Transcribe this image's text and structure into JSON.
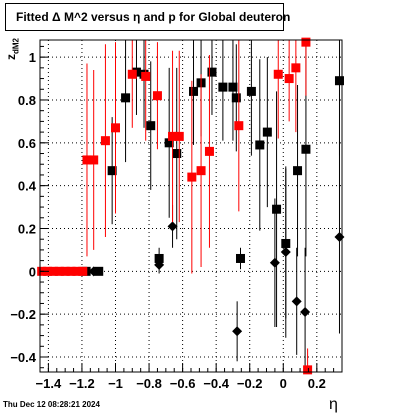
{
  "title": "Fitted Δ M^2 versus η and p for Global deuteron",
  "footer": "Thu Dec 12 08:28:21 2024",
  "chart_data": {
    "type": "scatter",
    "xlabel": "η",
    "ylabel_main": "z",
    "ylabel_sub": "dM2",
    "xlim": [
      -1.45,
      0.35
    ],
    "ylim": [
      -0.47,
      1.08
    ],
    "grid": true,
    "x_ticks": [
      -1.4,
      -1.2,
      -1,
      -0.8,
      -0.6,
      -0.4,
      -0.2,
      0,
      0.2
    ],
    "x_tick_labels": [
      "−1.4",
      "−1.2",
      "−1",
      "−0.8",
      "−0.6",
      "−0.4",
      "−0.2",
      "0",
      "0.2"
    ],
    "y_ticks": [
      -0.4,
      -0.2,
      0,
      0.2,
      0.4,
      0.6,
      0.8,
      1
    ],
    "y_tick_labels": [
      "−0.4",
      "−0.2",
      "0",
      "0.2",
      "0.4",
      "0.6",
      "0.8",
      "1"
    ],
    "series": [
      {
        "color": "#ff0000",
        "marker": "square",
        "points": [
          {
            "x": -1.44,
            "y": 0.0
          },
          {
            "x": -1.405,
            "y": 0.0
          },
          {
            "x": -1.37,
            "y": 0.0
          },
          {
            "x": -1.335,
            "y": 0.0
          },
          {
            "x": -1.3,
            "y": 0.0
          },
          {
            "x": -1.265,
            "y": 0.0
          },
          {
            "x": -1.23,
            "y": 0.0
          },
          {
            "x": -1.195,
            "y": 0.0
          },
          {
            "x": -1.17,
            "y": 0.52,
            "err": 0.45
          },
          {
            "x": -1.13,
            "y": 0.52,
            "err": 0.42
          },
          {
            "x": -1.06,
            "y": 0.61,
            "err": 0.45
          },
          {
            "x": -1.0,
            "y": 0.67,
            "err": 0.4
          },
          {
            "x": -0.9,
            "y": 0.92,
            "err": 0.25
          },
          {
            "x": -0.82,
            "y": 0.91,
            "err": 0.3
          },
          {
            "x": -0.75,
            "y": 0.82,
            "err": 0.25
          },
          {
            "x": -0.66,
            "y": 0.63,
            "err": 0.4
          },
          {
            "x": -0.62,
            "y": 0.63,
            "err": 0.4
          },
          {
            "x": -0.545,
            "y": 0.44,
            "err": 0.45
          },
          {
            "x": -0.49,
            "y": 0.47,
            "err": 0.45
          },
          {
            "x": -0.44,
            "y": 0.56,
            "err": 0.45
          },
          {
            "x": -0.265,
            "y": 0.68,
            "err": 0.4
          },
          {
            "x": -0.03,
            "y": 0.92,
            "err": 0.3
          },
          {
            "x": 0.035,
            "y": 0.9,
            "err": 0.2
          },
          {
            "x": 0.075,
            "y": 0.95,
            "err": 0.3
          },
          {
            "x": 0.135,
            "y": 1.07,
            "err": 0.25
          },
          {
            "x": 0.145,
            "y": -0.46,
            "err": 0.1
          }
        ]
      },
      {
        "color": "#000000",
        "marker": "square",
        "points": [
          {
            "x": -1.175,
            "y": 0.0
          },
          {
            "x": -1.1,
            "y": 0.0
          },
          {
            "x": -1.02,
            "y": 0.47,
            "err": 0.25
          },
          {
            "x": -0.94,
            "y": 0.81,
            "err": 0.3
          },
          {
            "x": -0.875,
            "y": 0.93,
            "err": 0.2
          },
          {
            "x": -0.83,
            "y": 0.92,
            "err": 0.25
          },
          {
            "x": -0.79,
            "y": 0.68,
            "err": 0.3
          },
          {
            "x": -0.74,
            "y": 0.06,
            "err": 0.05
          },
          {
            "x": -0.68,
            "y": 0.6,
            "err": 0.35
          },
          {
            "x": -0.635,
            "y": 0.55,
            "err": 0.4
          },
          {
            "x": -0.535,
            "y": 0.84,
            "err": 0.25
          },
          {
            "x": -0.49,
            "y": 0.88,
            "err": 0.25
          },
          {
            "x": -0.425,
            "y": 0.93,
            "err": 0.2
          },
          {
            "x": -0.36,
            "y": 0.86,
            "err": 0.25
          },
          {
            "x": -0.3,
            "y": 0.86,
            "err": 0.25
          },
          {
            "x": -0.28,
            "y": 0.81,
            "err": 0.25
          },
          {
            "x": -0.255,
            "y": 0.06,
            "err": 0.05
          },
          {
            "x": -0.19,
            "y": 0.84,
            "err": 0.3
          },
          {
            "x": -0.14,
            "y": 0.59,
            "err": 0.4
          },
          {
            "x": -0.095,
            "y": 0.65,
            "err": 0.35
          },
          {
            "x": -0.04,
            "y": 0.29,
            "err": 0.55
          },
          {
            "x": 0.015,
            "y": 0.13,
            "err": 0.35
          },
          {
            "x": 0.085,
            "y": 0.47,
            "err": 0.4
          },
          {
            "x": 0.135,
            "y": 0.57,
            "err": 0.5
          },
          {
            "x": 0.335,
            "y": 0.89,
            "err": 0.35
          }
        ]
      },
      {
        "color": "#000000",
        "marker": "diamond",
        "points": [
          {
            "x": -1.13,
            "y": 0.0
          },
          {
            "x": -0.74,
            "y": 0.03,
            "err": 0.04
          },
          {
            "x": -0.66,
            "y": 0.21,
            "err": 0.1
          },
          {
            "x": -0.275,
            "y": -0.28,
            "err": 0.14
          },
          {
            "x": -0.05,
            "y": 0.04,
            "err": 0.3
          },
          {
            "x": 0.015,
            "y": 0.09,
            "err": 0.4
          },
          {
            "x": 0.08,
            "y": -0.14,
            "err": 0.25
          },
          {
            "x": 0.13,
            "y": -0.19,
            "err": 0.3
          },
          {
            "x": 0.335,
            "y": 0.16,
            "err": 0.45
          }
        ]
      }
    ]
  }
}
